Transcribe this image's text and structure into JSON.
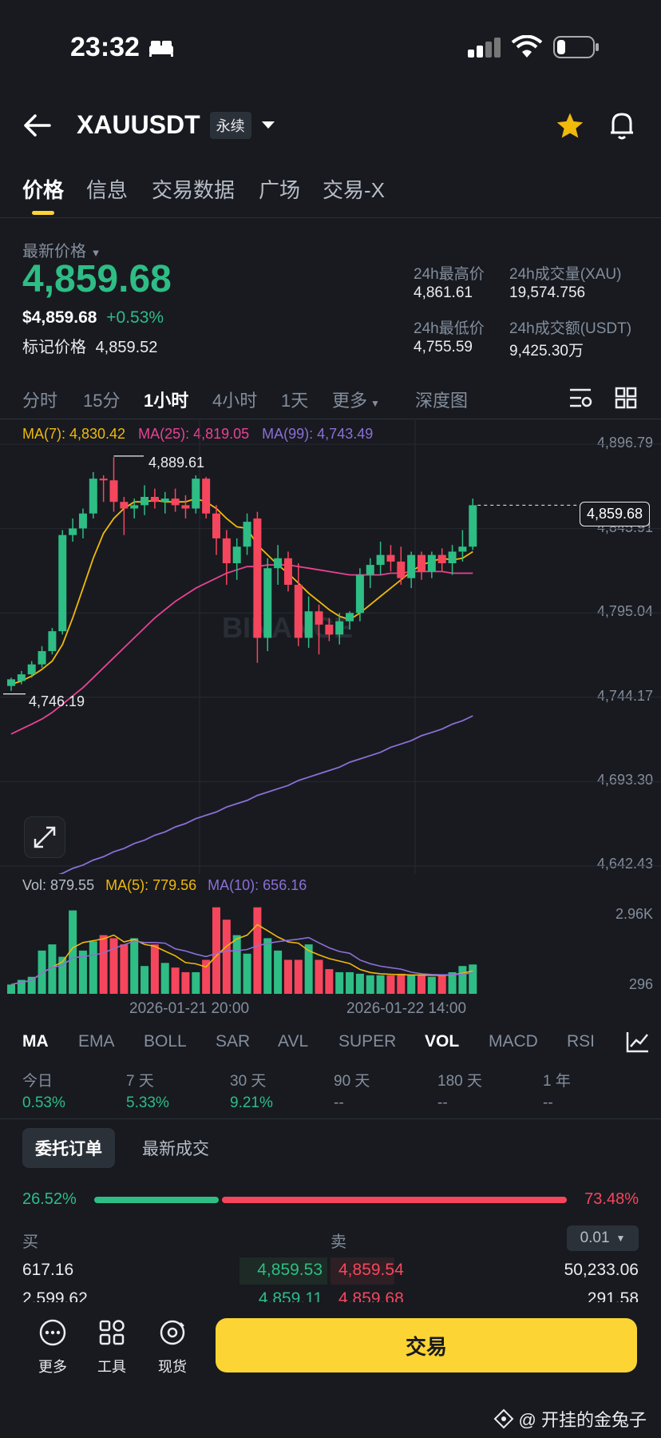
{
  "status": {
    "time": "23:32"
  },
  "header": {
    "symbol": "XAUUSDT",
    "badge": "永续"
  },
  "tabs": [
    "价格",
    "信息",
    "交易数据",
    "广场",
    "交易-X"
  ],
  "price": {
    "label": "最新价格",
    "last": "4,859.68",
    "usd": "$4,859.68",
    "change": "+0.53%",
    "mark_label": "标记价格",
    "mark_value": "4,859.52"
  },
  "stats": {
    "high_label": "24h最高价",
    "high": "4,861.61",
    "vol_label": "24h成交量(XAU)",
    "vol": "19,574.756",
    "low_label": "24h最低价",
    "low": "4,755.59",
    "amt_label": "24h成交额(USDT)",
    "amt": "9,425.30万"
  },
  "timeframes": [
    "分时",
    "15分",
    "1小时",
    "4小时",
    "1天",
    "更多",
    "深度图"
  ],
  "ma_legend": {
    "ma7": "MA(7): 4,830.42",
    "ma25": "MA(25): 4,819.05",
    "ma99": "MA(99): 4,743.49"
  },
  "vol_legend": {
    "vol": "Vol: 879.55",
    "ma5": "MA(5): 779.56",
    "ma10": "MA(10): 656.16"
  },
  "colors": {
    "up": "#2ebd85",
    "down": "#f6465d",
    "ma7": "#f0b90b",
    "ma25": "#e84393",
    "ma99": "#8c6fd6",
    "accent": "#fcd535"
  },
  "chart_data": {
    "type": "candlestick",
    "yticks": [
      "4,896.79",
      "4,845.91",
      "4,795.04",
      "4,744.17",
      "4,693.30",
      "4,642.43"
    ],
    "current_price_tag": "4,859.68",
    "high_marker": "4,889.61",
    "low_marker": "4,746.19",
    "vol_ticks": [
      "2.96K",
      "296"
    ],
    "x_labels": [
      "2026-01-21 20:00",
      "2026-01-22 14:00"
    ],
    "watermark": "BINANCE",
    "candles": [
      [
        4751,
        4756,
        4748,
        4755
      ],
      [
        4754,
        4760,
        4752,
        4758
      ],
      [
        4758,
        4766,
        4756,
        4764
      ],
      [
        4764,
        4775,
        4762,
        4772
      ],
      [
        4772,
        4786,
        4770,
        4784
      ],
      [
        4784,
        4845,
        4782,
        4842
      ],
      [
        4842,
        4852,
        4838,
        4846
      ],
      [
        4846,
        4858,
        4840,
        4855
      ],
      [
        4855,
        4880,
        4852,
        4876
      ],
      [
        4876,
        4878,
        4862,
        4875
      ],
      [
        4875,
        4889,
        4856,
        4862
      ],
      [
        4862,
        4865,
        4842,
        4858
      ],
      [
        4858,
        4864,
        4852,
        4860
      ],
      [
        4860,
        4872,
        4854,
        4865
      ],
      [
        4865,
        4870,
        4858,
        4862
      ],
      [
        4862,
        4868,
        4855,
        4864
      ],
      [
        4864,
        4870,
        4856,
        4860
      ],
      [
        4860,
        4866,
        4852,
        4858
      ],
      [
        4858,
        4878,
        4855,
        4876
      ],
      [
        4876,
        4877,
        4852,
        4855
      ],
      [
        4855,
        4860,
        4830,
        4840
      ],
      [
        4840,
        4845,
        4812,
        4825
      ],
      [
        4825,
        4840,
        4815,
        4835
      ],
      [
        4835,
        4855,
        4830,
        4850
      ],
      [
        4852,
        4856,
        4765,
        4780
      ],
      [
        4780,
        4828,
        4772,
        4822
      ],
      [
        4822,
        4836,
        4812,
        4828
      ],
      [
        4828,
        4832,
        4808,
        4812
      ],
      [
        4812,
        4825,
        4775,
        4780
      ],
      [
        4780,
        4805,
        4774,
        4796
      ],
      [
        4796,
        4800,
        4770,
        4788
      ],
      [
        4788,
        4792,
        4778,
        4782
      ],
      [
        4782,
        4795,
        4776,
        4790
      ],
      [
        4790,
        4796,
        4785,
        4795
      ],
      [
        4795,
        4822,
        4790,
        4818
      ],
      [
        4818,
        4828,
        4810,
        4824
      ],
      [
        4824,
        4838,
        4818,
        4830
      ],
      [
        4830,
        4836,
        4820,
        4826
      ],
      [
        4826,
        4835,
        4812,
        4816
      ],
      [
        4816,
        4832,
        4810,
        4830
      ],
      [
        4830,
        4832,
        4815,
        4820
      ],
      [
        4820,
        4832,
        4816,
        4830
      ],
      [
        4830,
        4834,
        4820,
        4825
      ],
      [
        4825,
        4836,
        4818,
        4832
      ],
      [
        4832,
        4845,
        4826,
        4835
      ],
      [
        4835,
        4864,
        4833,
        4860
      ]
    ],
    "ma7": [
      4752,
      4754,
      4757,
      4761,
      4766,
      4776,
      4792,
      4810,
      4828,
      4843,
      4852,
      4858,
      4862,
      4862,
      4863,
      4862,
      4862,
      4862,
      4864,
      4862,
      4858,
      4852,
      4847,
      4846,
      4836,
      4830,
      4824,
      4819,
      4813,
      4807,
      4802,
      4797,
      4793,
      4791,
      4795,
      4800,
      4805,
      4810,
      4815,
      4820,
      4824,
      4826,
      4828,
      4827,
      4828,
      4832
    ],
    "ma25": [
      4722,
      4725,
      4728,
      4731,
      4735,
      4740,
      4745,
      4750,
      4756,
      4762,
      4768,
      4774,
      4780,
      4786,
      4792,
      4797,
      4802,
      4806,
      4810,
      4813,
      4816,
      4819,
      4821,
      4823,
      4823,
      4824,
      4824,
      4824,
      4823,
      4822,
      4821,
      4820,
      4819,
      4818,
      4818,
      4818,
      4818,
      4819,
      4819,
      4820,
      4820,
      4820,
      4820,
      4819,
      4819,
      4819
    ],
    "ma99": [
      4628,
      4630,
      4632,
      4634,
      4636,
      4638,
      4641,
      4643,
      4646,
      4648,
      4651,
      4653,
      4656,
      4658,
      4661,
      4663,
      4666,
      4668,
      4671,
      4673,
      4675,
      4678,
      4680,
      4682,
      4685,
      4687,
      4689,
      4691,
      4694,
      4696,
      4698,
      4700,
      4702,
      4705,
      4707,
      4709,
      4711,
      4714,
      4716,
      4718,
      4721,
      4723,
      4725,
      4728,
      4730,
      4733
    ],
    "volumes": [
      300,
      450,
      550,
      1400,
      1600,
      1200,
      2700,
      1400,
      1700,
      1900,
      1800,
      1600,
      1800,
      900,
      1600,
      1000,
      850,
      700,
      700,
      1100,
      2800,
      2400,
      1900,
      1300,
      2800,
      1800,
      1400,
      1100,
      1100,
      1600,
      1100,
      800,
      700,
      700,
      650,
      600,
      600,
      600,
      650,
      600,
      600,
      550,
      600,
      700,
      900,
      950
    ]
  },
  "indicators": [
    "MA",
    "EMA",
    "BOLL",
    "SAR",
    "AVL",
    "SUPER",
    "VOL",
    "MACD",
    "RSI"
  ],
  "periods": [
    {
      "label": "今日",
      "value": "0.53%"
    },
    {
      "label": "7 天",
      "value": "5.33%"
    },
    {
      "label": "30 天",
      "value": "9.21%"
    },
    {
      "label": "90 天",
      "value": "--"
    },
    {
      "label": "180 天",
      "value": "--"
    },
    {
      "label": "1 年",
      "value": "--"
    }
  ],
  "orderbook": {
    "tab_active": "委托订单",
    "tab_other": "最新成交",
    "buy_pct": "26.52%",
    "sell_pct": "73.48%",
    "buy_ratio": 0.2652,
    "buy_label": "买",
    "sell_label": "卖",
    "step": "0.01",
    "rows": [
      {
        "buy_qty": "617.16",
        "buy_price": "4,859.53",
        "sell_price": "4,859.54",
        "sell_qty": "50,233.06"
      },
      {
        "buy_qty": "2,599.62",
        "buy_price": "4,859.11",
        "sell_price": "4,859.68",
        "sell_qty": "291.58"
      }
    ]
  },
  "bottom": {
    "more": "更多",
    "tools": "工具",
    "spot": "现货",
    "trade": "交易"
  },
  "watermark_footer": "@ 开挂的金兔子"
}
